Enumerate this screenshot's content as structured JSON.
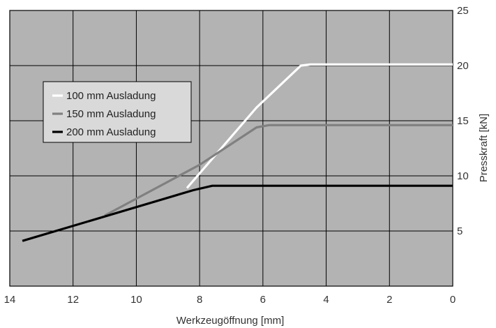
{
  "chart_data": {
    "type": "line",
    "title": "",
    "xlabel": "Werkzeugöffnung [mm]",
    "ylabel": "Presskraft [kN]",
    "xlim": [
      14,
      0
    ],
    "ylim": [
      0,
      25
    ],
    "x_ticks": [
      "14",
      "12",
      "10",
      "8",
      "6",
      "4",
      "2",
      "0"
    ],
    "y_ticks": [
      "5",
      "10",
      "15",
      "20",
      "25"
    ],
    "grid": true,
    "legend_position": "left",
    "colors": {
      "plot_background": "#b3b3b3",
      "grid": "#000000"
    },
    "series": [
      {
        "name": "100 mm Ausladung",
        "color": "#ffffff",
        "points": [
          [
            8.4,
            8.9
          ],
          [
            6.2,
            16.2
          ],
          [
            4.8,
            20.0
          ],
          [
            4.5,
            20.1
          ],
          [
            0,
            20.1
          ]
        ]
      },
      {
        "name": "150 mm Ausladung",
        "color": "#808080",
        "points": [
          [
            11.0,
            6.4
          ],
          [
            8.0,
            11.0
          ],
          [
            6.2,
            14.4
          ],
          [
            5.8,
            14.6
          ],
          [
            0,
            14.6
          ]
        ]
      },
      {
        "name": "200 mm Ausladung",
        "color": "#000000",
        "points": [
          [
            13.6,
            4.1
          ],
          [
            8.2,
            8.7
          ],
          [
            7.6,
            9.1
          ],
          [
            7.0,
            9.1
          ],
          [
            0,
            9.1
          ]
        ]
      }
    ]
  }
}
